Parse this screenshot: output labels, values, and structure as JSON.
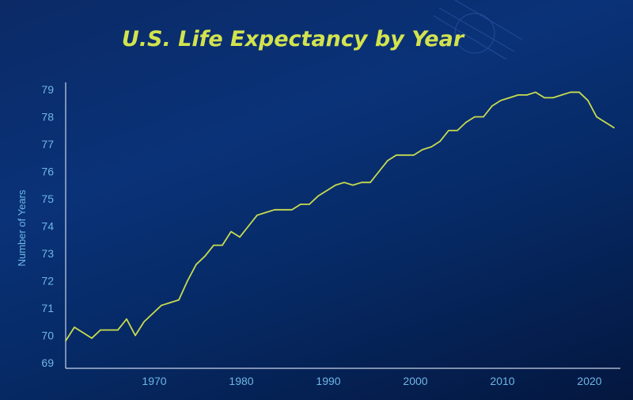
{
  "chart_data": {
    "type": "line",
    "title": "U.S. Life Expectancy by Year",
    "xlabel": "",
    "ylabel": "Number of Years",
    "xlim": [
      1960,
      2023
    ],
    "ylim": [
      69,
      79
    ],
    "xticks": [
      1970,
      1980,
      1990,
      2000,
      2010,
      2020
    ],
    "yticks": [
      69,
      70,
      71,
      72,
      73,
      74,
      75,
      76,
      77,
      78,
      79
    ],
    "grid": false,
    "x": [
      1960,
      1961,
      1962,
      1963,
      1964,
      1965,
      1966,
      1967,
      1968,
      1969,
      1970,
      1971,
      1972,
      1973,
      1974,
      1975,
      1976,
      1977,
      1978,
      1979,
      1980,
      1981,
      1982,
      1983,
      1984,
      1985,
      1986,
      1987,
      1988,
      1989,
      1990,
      1991,
      1992,
      1993,
      1994,
      1995,
      1996,
      1997,
      1998,
      1999,
      2000,
      2001,
      2002,
      2003,
      2004,
      2005,
      2006,
      2007,
      2008,
      2009,
      2010,
      2011,
      2012,
      2013,
      2014,
      2015,
      2016,
      2017,
      2018,
      2019,
      2020,
      2021,
      2022,
      2023
    ],
    "values": [
      69.8,
      70.3,
      70.1,
      69.9,
      70.2,
      70.2,
      70.2,
      70.6,
      70.0,
      70.5,
      70.8,
      71.1,
      71.2,
      71.3,
      72.0,
      72.6,
      72.9,
      73.3,
      73.3,
      73.8,
      73.6,
      74.0,
      74.4,
      74.5,
      74.6,
      74.6,
      74.6,
      74.8,
      74.8,
      75.1,
      75.3,
      75.5,
      75.6,
      75.5,
      75.6,
      75.6,
      76.0,
      76.4,
      76.6,
      76.6,
      76.6,
      76.8,
      76.9,
      77.1,
      77.5,
      77.5,
      77.8,
      78.0,
      78.0,
      78.4,
      78.6,
      78.7,
      78.8,
      78.8,
      78.9,
      78.7,
      78.7,
      78.8,
      78.9,
      78.9,
      78.6,
      78.0,
      77.8,
      77.6
    ],
    "colors": {
      "line": "#c9dc4f",
      "title": "#d3e34e",
      "ticks": "#6fb6e6",
      "axis": "#c8d4e8",
      "background": "#0a3278"
    }
  }
}
